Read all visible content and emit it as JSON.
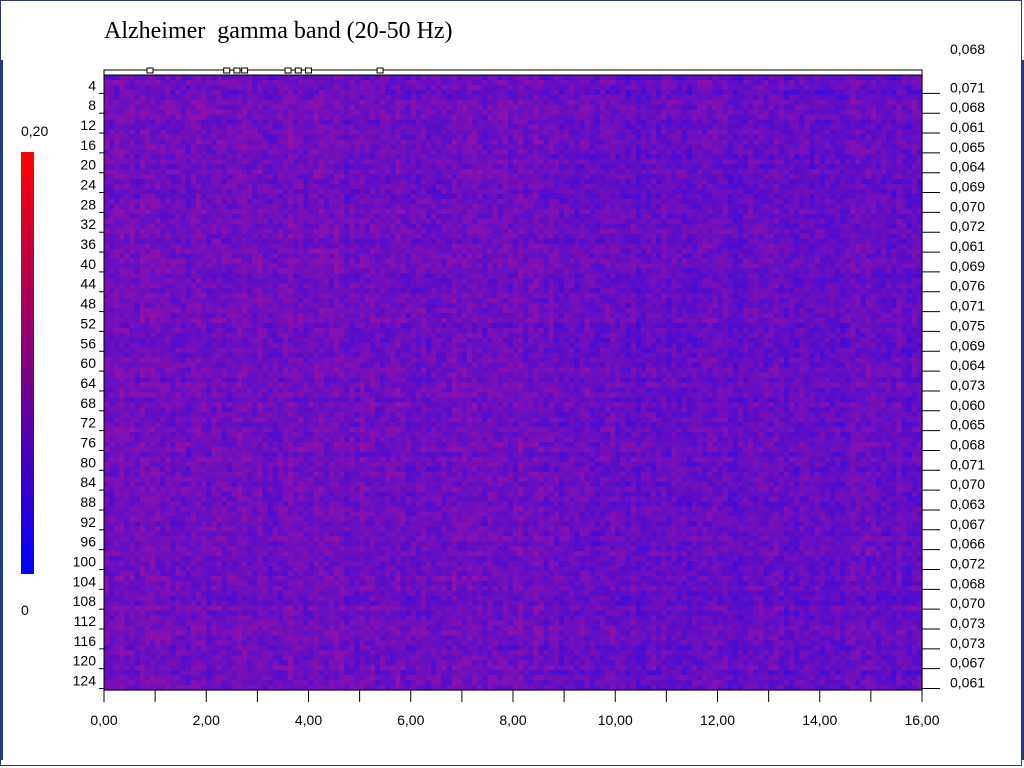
{
  "title": "Alzheimer  gamma band (20-50 Hz)",
  "colors": {
    "low": "#0000ff",
    "high": "#ff0000",
    "frame": "#2b3a66"
  },
  "colorbar": {
    "max_label": "0,20",
    "min_label": "0",
    "min": 0,
    "max": 0.2
  },
  "chart_data": {
    "type": "heatmap",
    "title": "Alzheimer  gamma band (20-50 Hz)",
    "xlabel": "",
    "ylabel": "",
    "xlim": [
      0,
      16
    ],
    "ylim": [
      1,
      124
    ],
    "x_ticks": [
      "0,00",
      "2,00",
      "4,00",
      "6,00",
      "8,00",
      "10,00",
      "12,00",
      "14,00",
      "16,00"
    ],
    "x_tick_values": [
      0,
      2,
      4,
      6,
      8,
      10,
      12,
      14,
      16
    ],
    "y_ticks": [
      "4",
      "8",
      "12",
      "16",
      "20",
      "24",
      "28",
      "32",
      "36",
      "40",
      "44",
      "48",
      "52",
      "56",
      "60",
      "64",
      "68",
      "72",
      "76",
      "80",
      "84",
      "88",
      "92",
      "96",
      "100",
      "104",
      "108",
      "112",
      "116",
      "120",
      "124"
    ],
    "y_tick_values": [
      4,
      8,
      12,
      16,
      20,
      24,
      28,
      32,
      36,
      40,
      44,
      48,
      52,
      56,
      60,
      64,
      68,
      72,
      76,
      80,
      84,
      88,
      92,
      96,
      100,
      104,
      108,
      112,
      116,
      120,
      124
    ],
    "right_top_value": "0,068",
    "right_values": [
      "0,071",
      "0,068",
      "0,061",
      "0,065",
      "0,064",
      "0,069",
      "0,070",
      "0,072",
      "0,061",
      "0,069",
      "0,076",
      "0,071",
      "0,075",
      "0,069",
      "0,064",
      "0,073",
      "0,060",
      "0,065",
      "0,068",
      "0,071",
      "0,070",
      "0,063",
      "0,067",
      "0,066",
      "0,072",
      "0,068",
      "0,070",
      "0,073",
      "0,073",
      "0,067",
      "0,061"
    ],
    "value_range": [
      0,
      0.2
    ],
    "colormap": [
      "#0000ff",
      "#ff0000"
    ],
    "grid": false,
    "legend": "colorbar-left"
  }
}
